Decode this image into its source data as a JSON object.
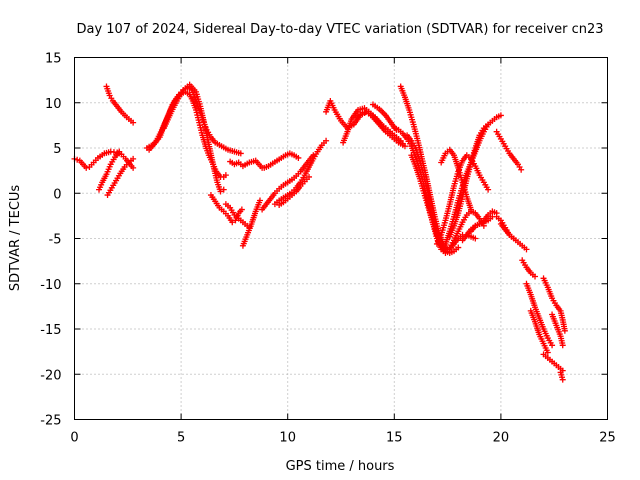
{
  "chart_data": {
    "type": "scatter",
    "title": "Day 107 of 2024, Sidereal Day-to-day VTEC variation (SDTVAR) for receiver cn23",
    "xlabel": "GPS time / hours",
    "ylabel": "SDTVAR / TECUs",
    "xlim": [
      0,
      25
    ],
    "ylim": [
      -25,
      15
    ],
    "xticks": [
      0,
      5,
      10,
      15,
      20,
      25
    ],
    "yticks": [
      -25,
      -20,
      -15,
      -10,
      -5,
      0,
      5,
      10,
      15
    ],
    "xtick_labels": [
      "0",
      "5",
      "10",
      "15",
      "20",
      "25"
    ],
    "ytick_labels": [
      "-25",
      "-20",
      "-15",
      "-10",
      "-5",
      "0",
      "5",
      "10",
      "15"
    ],
    "grid": true,
    "marker": "plus",
    "color": "#ff0000",
    "series": [
      {
        "name": "s1",
        "x": [
          0.0,
          0.25,
          0.4,
          0.55,
          0.7,
          0.9,
          1.1,
          1.4,
          1.7,
          2.0,
          2.2,
          2.4,
          2.6,
          2.75
        ],
        "y": [
          3.8,
          3.6,
          3.2,
          2.8,
          2.9,
          3.4,
          3.9,
          4.4,
          4.6,
          4.5,
          4.3,
          3.8,
          3.2,
          2.8
        ]
      },
      {
        "name": "s2",
        "x": [
          1.15,
          1.3,
          1.5,
          1.7,
          1.9,
          2.1
        ],
        "y": [
          0.4,
          1.2,
          2.1,
          3.2,
          4.0,
          4.6
        ]
      },
      {
        "name": "s3",
        "x": [
          1.55,
          1.75,
          1.95,
          2.15,
          2.35,
          2.55,
          2.75
        ],
        "y": [
          -0.2,
          0.6,
          1.4,
          2.2,
          2.9,
          3.4,
          3.8
        ]
      },
      {
        "name": "s4",
        "x": [
          1.5,
          1.65,
          1.8,
          2.0,
          2.2,
          2.45,
          2.75
        ],
        "y": [
          11.8,
          10.8,
          10.2,
          9.6,
          9.0,
          8.4,
          7.8
        ]
      },
      {
        "name": "s5",
        "x": [
          3.4,
          3.7,
          4.0,
          4.25,
          4.5,
          4.7,
          4.9,
          5.1,
          5.3,
          5.5,
          5.65,
          5.8,
          5.95,
          6.05,
          6.2,
          6.4,
          6.6,
          6.9,
          7.2,
          7.5,
          7.8
        ],
        "y": [
          5.0,
          5.4,
          6.2,
          7.8,
          9.2,
          10.2,
          10.9,
          11.4,
          11.7,
          11.4,
          10.6,
          9.6,
          8.6,
          7.9,
          7.0,
          6.2,
          5.6,
          5.2,
          4.8,
          4.6,
          4.4
        ]
      },
      {
        "name": "s6",
        "x": [
          3.5,
          3.8,
          4.1,
          4.4,
          4.6,
          4.8,
          5.0,
          5.2,
          5.4,
          5.55,
          5.7,
          5.85,
          6.0,
          6.15,
          6.3,
          6.5,
          6.65,
          6.85,
          7.0,
          7.1
        ],
        "y": [
          4.8,
          5.6,
          7.0,
          8.6,
          9.8,
          10.5,
          11.0,
          11.2,
          10.9,
          10.2,
          9.2,
          7.8,
          6.4,
          5.2,
          4.2,
          3.2,
          2.4,
          1.8,
          1.8,
          2.0
        ]
      },
      {
        "name": "s7",
        "x": [
          4.2,
          4.5,
          4.8,
          5.1,
          5.4,
          5.7,
          5.9,
          6.1,
          6.3,
          6.5,
          6.7,
          6.85,
          7.0
        ],
        "y": [
          7.2,
          8.8,
          10.2,
          11.4,
          12.0,
          11.2,
          9.6,
          7.6,
          5.4,
          3.2,
          1.2,
          0.2,
          0.4
        ]
      },
      {
        "name": "s8",
        "x": [
          6.4,
          6.6,
          6.8,
          7.0,
          7.2,
          7.4,
          7.55,
          7.7,
          7.85
        ],
        "y": [
          -0.2,
          -0.9,
          -1.6,
          -2.0,
          -2.5,
          -3.2,
          -3.0,
          -2.2,
          -1.8
        ]
      },
      {
        "name": "s9",
        "x": [
          7.1,
          7.3,
          7.5,
          7.7,
          7.9,
          8.2
        ],
        "y": [
          -1.2,
          -1.6,
          -2.4,
          -2.8,
          -3.2,
          -3.8
        ]
      },
      {
        "name": "s10",
        "x": [
          7.9,
          8.1,
          8.3,
          8.5,
          8.7
        ],
        "y": [
          -5.8,
          -4.6,
          -3.4,
          -2.0,
          -0.8
        ]
      },
      {
        "name": "s11",
        "x": [
          7.3,
          7.5,
          7.7,
          7.9,
          8.2,
          8.5,
          8.8
        ],
        "y": [
          3.5,
          3.2,
          3.4,
          3.0,
          3.4,
          3.6,
          2.8
        ]
      },
      {
        "name": "s12",
        "x": [
          8.9,
          9.1,
          9.3,
          9.5,
          9.7,
          9.9,
          10.1,
          10.3,
          10.5
        ],
        "y": [
          2.8,
          3.0,
          3.3,
          3.6,
          3.9,
          4.2,
          4.4,
          4.2,
          3.9
        ]
      },
      {
        "name": "s13",
        "x": [
          8.8,
          9.0,
          9.2,
          9.4,
          9.6,
          9.8,
          10.0,
          10.2,
          10.4,
          10.6,
          10.8,
          11.0,
          11.2
        ],
        "y": [
          -1.8,
          -1.2,
          -0.6,
          0.0,
          0.5,
          0.9,
          1.2,
          1.5,
          1.9,
          2.4,
          3.0,
          3.6,
          4.2
        ]
      },
      {
        "name": "s14",
        "x": [
          9.4,
          9.6,
          9.8,
          10.0,
          10.2,
          10.4,
          10.6,
          10.8,
          11.0,
          11.2,
          11.4,
          11.6,
          11.8
        ],
        "y": [
          -1.2,
          -0.8,
          -0.5,
          -0.2,
          0.1,
          0.6,
          1.2,
          2.0,
          2.9,
          3.8,
          4.6,
          5.3,
          5.8
        ]
      },
      {
        "name": "s15",
        "x": [
          9.6,
          9.8,
          10.0,
          10.2,
          10.4,
          10.6,
          10.8,
          11.0
        ],
        "y": [
          -1.3,
          -1.0,
          -0.6,
          -0.2,
          0.2,
          0.8,
          1.3,
          1.8
        ]
      },
      {
        "name": "s16",
        "x": [
          11.8,
          12.0,
          12.2,
          12.5,
          12.8,
          13.1,
          13.4,
          13.7,
          14.0,
          14.3,
          14.6,
          14.9,
          15.2,
          15.5
        ],
        "y": [
          9.0,
          10.2,
          9.2,
          8.0,
          7.2,
          7.6,
          8.6,
          9.0,
          8.4,
          7.6,
          6.8,
          6.2,
          5.6,
          5.2
        ]
      },
      {
        "name": "s17",
        "x": [
          12.6,
          12.8,
          13.0,
          13.3,
          13.6,
          13.9,
          14.2,
          14.5,
          14.8,
          15.1,
          15.4
        ],
        "y": [
          5.6,
          6.8,
          8.2,
          9.2,
          9.4,
          8.8,
          8.0,
          7.2,
          6.6,
          6.0,
          5.5
        ]
      },
      {
        "name": "s18",
        "x": [
          13.2,
          13.5,
          13.8,
          14.1,
          14.4,
          14.7,
          15.0,
          15.3
        ],
        "y": [
          8.4,
          8.9,
          9.0,
          8.4,
          7.6,
          7.0,
          6.4,
          5.8
        ]
      },
      {
        "name": "s19",
        "x": [
          14.0,
          14.3,
          14.6,
          14.9,
          15.1
        ],
        "y": [
          9.8,
          9.3,
          8.6,
          7.6,
          7.0
        ]
      },
      {
        "name": "s20",
        "x": [
          15.0,
          15.2,
          15.4,
          15.6,
          15.8,
          16.0,
          16.2,
          16.4,
          16.6,
          16.8,
          17.0,
          17.2,
          17.4,
          17.6,
          17.8,
          18.0,
          18.2,
          18.4,
          18.6,
          18.8
        ],
        "y": [
          7.2,
          7.0,
          6.6,
          6.0,
          5.2,
          4.0,
          2.6,
          0.8,
          -1.2,
          -3.2,
          -5.0,
          -6.2,
          -6.6,
          -6.2,
          -5.6,
          -5.0,
          -4.6,
          -4.6,
          -4.8,
          -5.0
        ]
      },
      {
        "name": "s21",
        "x": [
          15.3,
          15.5,
          15.7,
          15.9,
          16.1,
          16.3,
          16.5,
          16.7,
          16.9,
          17.1,
          17.3,
          17.5
        ],
        "y": [
          11.8,
          10.6,
          9.2,
          7.6,
          5.8,
          3.8,
          1.8,
          -0.4,
          -2.6,
          -4.4,
          -5.6,
          -6.2
        ]
      },
      {
        "name": "s22",
        "x": [
          15.6,
          15.8,
          16.0,
          16.2,
          16.4,
          16.6,
          16.8,
          17.0,
          17.2,
          17.4,
          17.6,
          17.8,
          18.0,
          18.2,
          18.4,
          18.6,
          18.8,
          19.0,
          19.2
        ],
        "y": [
          6.4,
          5.8,
          5.0,
          3.6,
          1.8,
          -0.2,
          -2.4,
          -4.4,
          -5.8,
          -6.4,
          -6.0,
          -5.2,
          -4.2,
          -3.2,
          -2.4,
          -2.0,
          -2.2,
          -2.8,
          -3.6
        ]
      },
      {
        "name": "s23",
        "x": [
          15.8,
          16.0,
          16.2,
          16.4,
          16.6,
          16.8,
          17.0,
          17.2,
          17.4,
          17.6,
          17.8,
          18.0
        ],
        "y": [
          4.2,
          3.0,
          1.6,
          0.0,
          -1.6,
          -3.2,
          -4.6,
          -5.6,
          -6.4,
          -6.6,
          -6.4,
          -6.0
        ]
      },
      {
        "name": "s24",
        "x": [
          17.0,
          17.2,
          17.4,
          17.6,
          17.8,
          18.0,
          18.2,
          18.4,
          18.6,
          18.8,
          19.0,
          19.2,
          19.4
        ],
        "y": [
          -5.6,
          -4.6,
          -3.0,
          -1.2,
          0.8,
          2.4,
          3.6,
          4.2,
          3.8,
          3.0,
          2.0,
          1.2,
          0.4
        ]
      },
      {
        "name": "s25",
        "x": [
          17.4,
          17.6,
          17.8,
          18.0,
          18.2,
          18.4,
          18.6,
          18.8,
          19.0,
          19.2,
          19.4,
          19.6,
          19.8,
          20.0
        ],
        "y": [
          -5.6,
          -4.2,
          -2.6,
          -0.8,
          0.8,
          2.2,
          3.4,
          4.6,
          5.8,
          6.8,
          7.6,
          8.0,
          8.4,
          8.6
        ]
      },
      {
        "name": "s26",
        "x": [
          17.6,
          17.8,
          18.0,
          18.2,
          18.4,
          18.6,
          18.8,
          19.0,
          19.2,
          19.4
        ],
        "y": [
          -4.8,
          -3.6,
          -2.2,
          -0.4,
          1.6,
          3.4,
          5.0,
          6.4,
          7.2,
          7.6
        ]
      },
      {
        "name": "s27",
        "x": [
          17.2,
          17.4,
          17.6,
          17.8,
          18.0,
          18.2,
          18.4,
          18.6
        ],
        "y": [
          3.4,
          4.4,
          4.8,
          4.2,
          2.8,
          1.2,
          -0.4,
          -1.8
        ]
      },
      {
        "name": "s28",
        "x": [
          18.2,
          18.4,
          18.6,
          18.8,
          19.0,
          19.2,
          19.4,
          19.6,
          19.8
        ],
        "y": [
          -5.2,
          -4.6,
          -4.0,
          -3.6,
          -3.4,
          -3.0,
          -2.4,
          -2.0,
          -2.2
        ]
      },
      {
        "name": "s29",
        "x": [
          18.6,
          18.8,
          19.0,
          19.2,
          19.4,
          19.6,
          19.8,
          20.0,
          20.2,
          20.4,
          20.6
        ],
        "y": [
          -4.2,
          -3.6,
          -3.4,
          -3.2,
          -3.0,
          -2.6,
          -2.6,
          -3.0,
          -3.8,
          -4.6,
          -5.0
        ]
      },
      {
        "name": "s30",
        "x": [
          19.8,
          20.0,
          20.2,
          20.4,
          20.6,
          20.8,
          20.95
        ],
        "y": [
          6.8,
          6.0,
          5.2,
          4.4,
          3.8,
          3.2,
          2.6
        ]
      },
      {
        "name": "s31",
        "x": [
          20.0,
          20.2,
          20.4,
          20.6,
          20.8,
          21.0,
          21.2
        ],
        "y": [
          -3.4,
          -4.0,
          -4.6,
          -5.0,
          -5.4,
          -5.8,
          -6.2
        ]
      },
      {
        "name": "s32",
        "x": [
          21.0,
          21.2,
          21.4,
          21.6
        ],
        "y": [
          -7.4,
          -8.2,
          -8.8,
          -9.2
        ]
      },
      {
        "name": "s33",
        "x": [
          21.2,
          21.4,
          21.6,
          21.8,
          22.0,
          22.2,
          22.4
        ],
        "y": [
          -10.0,
          -11.2,
          -12.6,
          -13.8,
          -15.0,
          -16.0,
          -16.8
        ]
      },
      {
        "name": "s34",
        "x": [
          21.4,
          21.6,
          21.8,
          22.0,
          22.2
        ],
        "y": [
          -13.0,
          -14.2,
          -15.6,
          -16.6,
          -17.6
        ]
      },
      {
        "name": "s35",
        "x": [
          22.0,
          22.2,
          22.4,
          22.6,
          22.8,
          22.9,
          23.0
        ],
        "y": [
          -9.4,
          -10.4,
          -11.6,
          -12.4,
          -13.0,
          -14.0,
          -15.2
        ]
      },
      {
        "name": "s36",
        "x": [
          22.4,
          22.6,
          22.8,
          22.9
        ],
        "y": [
          -13.4,
          -14.6,
          -15.8,
          -16.8
        ]
      },
      {
        "name": "s37",
        "x": [
          22.0,
          22.3,
          22.6,
          22.9
        ],
        "y": [
          -17.8,
          -18.4,
          -19.0,
          -19.6
        ]
      },
      {
        "name": "s38",
        "x": [
          22.8,
          22.9
        ],
        "y": [
          -19.8,
          -20.6
        ]
      }
    ]
  }
}
